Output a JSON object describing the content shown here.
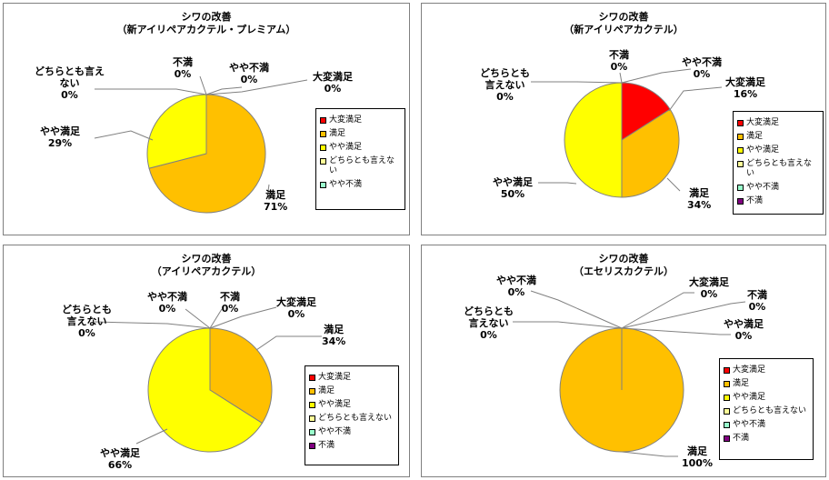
{
  "legend_labels": [
    "大変満足",
    "満足",
    "やや満足",
    "どちらとも言えない",
    "やや不満",
    "不満"
  ],
  "colors": {
    "大変満足": "#ff0000",
    "満足": "#ffc000",
    "やや満足": "#ffff00",
    "どちらとも言えない": "#ffff99",
    "やや不満": "#99ffcc",
    "不満": "#800080",
    "leader": "#808080",
    "edge": "#808080"
  },
  "chart_data": [
    {
      "type": "pie",
      "title": "シワの改善",
      "subtitle": "（新アイリペアカクテル・プレミアム）",
      "legend": [
        "大変満足",
        "満足",
        "やや満足",
        "どちらとも言えない",
        "やや不満"
      ],
      "slices": [
        {
          "name": "大変満足",
          "value": 0,
          "label": "大変満足",
          "value_label": "0%"
        },
        {
          "name": "満足",
          "value": 71,
          "label": "満足",
          "value_label": "71%"
        },
        {
          "name": "やや満足",
          "value": 29,
          "label": "やや満足",
          "value_label": "29%"
        },
        {
          "name": "どちらとも言えない",
          "value": 0,
          "label": "どちらとも言え\nない",
          "value_label": "0%"
        },
        {
          "name": "不満",
          "value": 0,
          "label": "不満",
          "value_label": "0%"
        },
        {
          "name": "やや不満",
          "value": 0,
          "label": "やや不満",
          "value_label": "0%"
        }
      ]
    },
    {
      "type": "pie",
      "title": "シワの改善",
      "subtitle": "（新アイリペアカクテル）",
      "legend": [
        "大変満足",
        "満足",
        "やや満足",
        "どちらとも言えない",
        "やや不満",
        "不満"
      ],
      "slices": [
        {
          "name": "大変満足",
          "value": 16,
          "label": "大変満足",
          "value_label": "16%"
        },
        {
          "name": "満足",
          "value": 34,
          "label": "満足",
          "value_label": "34%"
        },
        {
          "name": "やや満足",
          "value": 50,
          "label": "やや満足",
          "value_label": "50%"
        },
        {
          "name": "どちらとも言えない",
          "value": 0,
          "label": "どちらとも\n言えない",
          "value_label": "0%"
        },
        {
          "name": "不満",
          "value": 0,
          "label": "不満",
          "value_label": "0%"
        },
        {
          "name": "やや不満",
          "value": 0,
          "label": "やや不満",
          "value_label": "0%"
        }
      ]
    },
    {
      "type": "pie",
      "title": "シワの改善",
      "subtitle": "（アイリペアカクテル）",
      "legend": [
        "大変満足",
        "満足",
        "やや満足",
        "どちらとも言えない",
        "やや不満",
        "不満"
      ],
      "slices": [
        {
          "name": "大変満足",
          "value": 0,
          "label": "大変満足",
          "value_label": "0%"
        },
        {
          "name": "満足",
          "value": 34,
          "label": "満足",
          "value_label": "34%"
        },
        {
          "name": "やや満足",
          "value": 66,
          "label": "やや満足",
          "value_label": "66%"
        },
        {
          "name": "どちらとも言えない",
          "value": 0,
          "label": "どちらとも\n言えない",
          "value_label": "0%"
        },
        {
          "name": "やや不満",
          "value": 0,
          "label": "やや不満",
          "value_label": "0%"
        },
        {
          "name": "不満",
          "value": 0,
          "label": "不満",
          "value_label": "0%"
        }
      ]
    },
    {
      "type": "pie",
      "title": "シワの改善",
      "subtitle": "（エセリスカクテル）",
      "legend": [
        "大変満足",
        "満足",
        "やや満足",
        "どちらとも言えない",
        "やや不満",
        "不満"
      ],
      "slices": [
        {
          "name": "大変満足",
          "value": 0,
          "label": "大変満足",
          "value_label": "0%"
        },
        {
          "name": "満足",
          "value": 100,
          "label": "満足",
          "value_label": "100%"
        },
        {
          "name": "やや満足",
          "value": 0,
          "label": "やや満足",
          "value_label": "0%"
        },
        {
          "name": "どちらとも言えない",
          "value": 0,
          "label": "どちらとも\n言えない",
          "value_label": "0%"
        },
        {
          "name": "やや不満",
          "value": 0,
          "label": "やや不満",
          "value_label": "0%"
        },
        {
          "name": "不満",
          "value": 0,
          "label": "不満",
          "value_label": "0%"
        }
      ]
    }
  ]
}
